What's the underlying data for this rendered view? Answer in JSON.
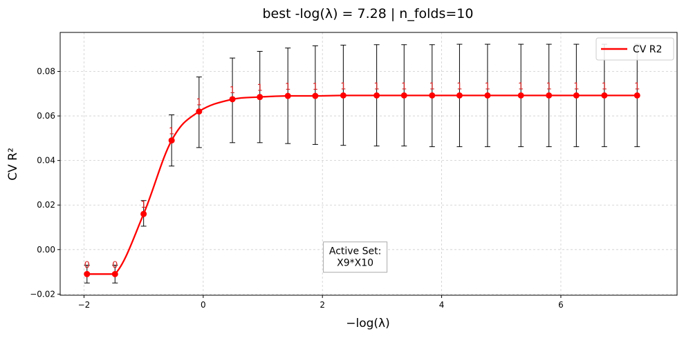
{
  "chart_data": {
    "type": "line",
    "title": "best -log(λ) = 7.28 | n_folds=10",
    "xlabel": "−log(λ)",
    "ylabel": "CV R²",
    "xlim": [
      -2.4,
      7.95
    ],
    "ylim": [
      -0.0205,
      0.0975
    ],
    "x_ticks": [
      -2,
      0,
      2,
      4,
      6
    ],
    "x_tick_labels": [
      "−2",
      "0",
      "2",
      "4",
      "6"
    ],
    "y_ticks": [
      -0.02,
      0.0,
      0.02,
      0.04,
      0.06,
      0.08
    ],
    "y_tick_labels": [
      "−0.02",
      "0.00",
      "0.02",
      "0.04",
      "0.06",
      "0.08"
    ],
    "grid": true,
    "legend_position": "top-right",
    "colors": {
      "line": "#ff0000",
      "points": "#ff0000",
      "errorbar": "#000000",
      "count_labels": "#d62020",
      "grid": "#cccccc"
    },
    "series": [
      {
        "name": "CV R2",
        "x": [
          -1.95,
          -1.48,
          -1.0,
          -0.53,
          -0.07,
          0.49,
          0.95,
          1.42,
          1.88,
          2.35,
          2.91,
          3.37,
          3.84,
          4.3,
          4.77,
          5.33,
          5.8,
          6.26,
          6.73,
          7.28
        ],
        "y": [
          -0.011,
          -0.011,
          0.016,
          0.049,
          0.062,
          0.0675,
          0.0685,
          0.069,
          0.069,
          0.0692,
          0.0692,
          0.0692,
          0.0692,
          0.0692,
          0.0692,
          0.0692,
          0.0692,
          0.0692,
          0.0692,
          0.0692
        ],
        "err_low": [
          -0.015,
          -0.015,
          0.0105,
          0.0375,
          0.0458,
          0.048,
          0.048,
          0.0476,
          0.0472,
          0.0468,
          0.0465,
          0.0465,
          0.0462,
          0.0462,
          0.0462,
          0.0462,
          0.0462,
          0.0462,
          0.0462,
          0.0462
        ],
        "err_high": [
          -0.007,
          -0.007,
          0.022,
          0.0605,
          0.0775,
          0.086,
          0.089,
          0.0905,
          0.0915,
          0.0918,
          0.092,
          0.092,
          0.092,
          0.0922,
          0.0922,
          0.0922,
          0.0922,
          0.0922,
          0.0922,
          0.0922
        ],
        "count_labels": [
          "0",
          "0",
          "1",
          "1",
          "1",
          "1",
          "1",
          "1",
          "1",
          "1",
          "1",
          "1",
          "1",
          "1",
          "1",
          "1",
          "1",
          "1",
          "1",
          "1"
        ]
      }
    ],
    "annotation": {
      "lines": [
        "Active Set:",
        "X9*X10"
      ],
      "x": 2.55,
      "y": -0.004
    }
  }
}
